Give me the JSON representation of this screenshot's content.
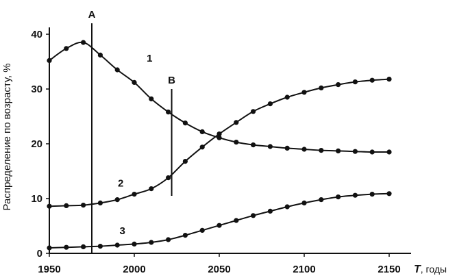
{
  "chart_data": {
    "type": "line",
    "title": "",
    "xlabel": "T, годы",
    "xlabel_symbol": "T",
    "xlabel_unit": ", годы",
    "ylabel": "Распределение по возрасту, %",
    "xlim": [
      1950,
      2150
    ],
    "ylim": [
      0,
      40
    ],
    "xticks": [
      "1950",
      "2000",
      "2050",
      "2100",
      "2150"
    ],
    "yticks": [
      "0",
      "10",
      "20",
      "30",
      "40"
    ],
    "grid": false,
    "markers": [
      {
        "label": "A",
        "x": 1975,
        "y_range": [
          0,
          42
        ]
      },
      {
        "label": "B",
        "x": 2022,
        "y_range": [
          10.5,
          30
        ]
      }
    ],
    "series": [
      {
        "name": "1",
        "x": [
          1950,
          1960,
          1970,
          1980,
          1990,
          2000,
          2010,
          2020,
          2030,
          2040,
          2050,
          2060,
          2070,
          2080,
          2090,
          2100,
          2110,
          2120,
          2130,
          2140,
          2150
        ],
        "y": [
          35.2,
          37.4,
          38.5,
          36.2,
          33.5,
          31.2,
          28.2,
          25.8,
          23.8,
          22.2,
          21.1,
          20.3,
          19.8,
          19.5,
          19.2,
          19.0,
          18.8,
          18.7,
          18.6,
          18.5,
          18.5
        ]
      },
      {
        "name": "2",
        "x": [
          1950,
          1960,
          1970,
          1980,
          1990,
          2000,
          2010,
          2020,
          2030,
          2040,
          2050,
          2060,
          2070,
          2080,
          2090,
          2100,
          2110,
          2120,
          2130,
          2140,
          2150
        ],
        "y": [
          8.6,
          8.7,
          8.8,
          9.2,
          9.8,
          10.8,
          11.8,
          13.8,
          16.8,
          19.4,
          21.8,
          23.9,
          25.9,
          27.3,
          28.5,
          29.4,
          30.2,
          30.8,
          31.3,
          31.6,
          31.8
        ]
      },
      {
        "name": "3",
        "x": [
          1950,
          1960,
          1970,
          1980,
          1990,
          2000,
          2010,
          2020,
          2030,
          2040,
          2050,
          2060,
          2070,
          2080,
          2090,
          2100,
          2110,
          2120,
          2130,
          2140,
          2150
        ],
        "y": [
          1.0,
          1.1,
          1.2,
          1.3,
          1.5,
          1.7,
          2.0,
          2.5,
          3.3,
          4.2,
          5.1,
          6.0,
          6.9,
          7.7,
          8.5,
          9.2,
          9.8,
          10.3,
          10.6,
          10.8,
          10.9
        ]
      }
    ],
    "series_label_positions": [
      {
        "name": "1",
        "x": 2009,
        "y": 35.0
      },
      {
        "name": "2",
        "x": 1992,
        "y": 12.2
      },
      {
        "name": "3",
        "x": 1993,
        "y": 3.5
      }
    ]
  }
}
